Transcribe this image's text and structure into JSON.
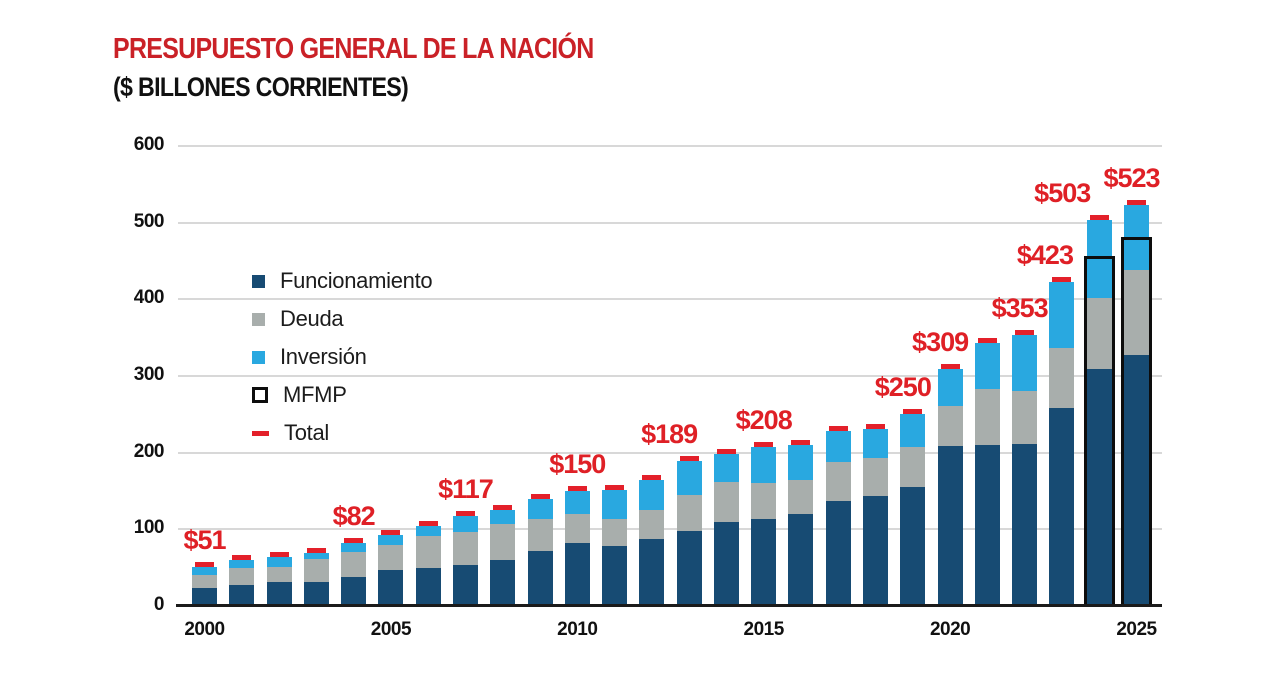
{
  "header": {
    "title": "PRESUPUESTO GENERAL DE LA NACIÓN",
    "subtitle": "($ BILLONES CORRIENTES)"
  },
  "chart_data": {
    "type": "bar",
    "stacked": true,
    "title": "PRESUPUESTO GENERAL DE LA NACIÓN",
    "subtitle": "($ BILLONES CORRIENTES)",
    "units": "$ billones corrientes",
    "ylim": [
      0,
      600
    ],
    "y_ticks": [
      0,
      100,
      200,
      300,
      400,
      500,
      600
    ],
    "x_ticks": [
      2000,
      2005,
      2010,
      2015,
      2020,
      2025
    ],
    "grid": "horizontal",
    "legend_position": "inside-left",
    "series_names": [
      "Funcionamiento",
      "Deuda",
      "Inversión",
      "MFMP",
      "Total"
    ],
    "colors": {
      "funcionamiento": "#174B73",
      "deuda": "#A8AEAC",
      "inversion": "#29A8E0",
      "mfmp_outline": "#0D0D0D",
      "total": "#E3202A",
      "label_red": "#DF2026",
      "title_red": "#CA2127",
      "text": "#111111",
      "gridline": "#D8D8D8",
      "axis_line": "#1B1B1B"
    },
    "legend": [
      {
        "id": "funcionamiento",
        "label": "Funcionamiento",
        "swatch": "square"
      },
      {
        "id": "deuda",
        "label": "Deuda",
        "swatch": "square"
      },
      {
        "id": "inversion",
        "label": "Inversión",
        "swatch": "square"
      },
      {
        "id": "mfmp",
        "label": "MFMP",
        "swatch": "outlined-square"
      },
      {
        "id": "total",
        "label": "Total",
        "swatch": "dash"
      }
    ],
    "bars": [
      {
        "year": 2000,
        "funcionamiento": 23,
        "deuda": 18,
        "inversion": 10,
        "total": 51,
        "label": "$51"
      },
      {
        "year": 2001,
        "funcionamiento": 27,
        "deuda": 22,
        "inversion": 11,
        "total": 60
      },
      {
        "year": 2002,
        "funcionamiento": 31,
        "deuda": 20,
        "inversion": 13,
        "total": 64
      },
      {
        "year": 2003,
        "funcionamiento": 31,
        "deuda": 30,
        "inversion": 8,
        "total": 69
      },
      {
        "year": 2004,
        "funcionamiento": 38,
        "deuda": 33,
        "inversion": 11,
        "total": 82,
        "label": "$82"
      },
      {
        "year": 2005,
        "funcionamiento": 47,
        "deuda": 32,
        "inversion": 13,
        "total": 92
      },
      {
        "year": 2006,
        "funcionamiento": 49,
        "deuda": 42,
        "inversion": 14,
        "total": 105
      },
      {
        "year": 2007,
        "funcionamiento": 53,
        "deuda": 44,
        "inversion": 20,
        "total": 117,
        "label": "$117"
      },
      {
        "year": 2008,
        "funcionamiento": 60,
        "deuda": 47,
        "inversion": 18,
        "total": 125
      },
      {
        "year": 2009,
        "funcionamiento": 72,
        "deuda": 41,
        "inversion": 27,
        "total": 140
      },
      {
        "year": 2010,
        "funcionamiento": 82,
        "deuda": 38,
        "inversion": 30,
        "total": 150,
        "label": "$150"
      },
      {
        "year": 2011,
        "funcionamiento": 78,
        "deuda": 36,
        "inversion": 37,
        "total": 151
      },
      {
        "year": 2012,
        "funcionamiento": 87,
        "deuda": 38,
        "inversion": 40,
        "total": 165
      },
      {
        "year": 2013,
        "funcionamiento": 98,
        "deuda": 47,
        "inversion": 44,
        "total": 189,
        "label": "$189"
      },
      {
        "year": 2014,
        "funcionamiento": 109,
        "deuda": 53,
        "inversion": 36,
        "total": 198
      },
      {
        "year": 2015,
        "funcionamiento": 113,
        "deuda": 47,
        "inversion": 48,
        "total": 208,
        "label": "$208"
      },
      {
        "year": 2016,
        "funcionamiento": 120,
        "deuda": 44,
        "inversion": 46,
        "total": 210
      },
      {
        "year": 2017,
        "funcionamiento": 137,
        "deuda": 51,
        "inversion": 40,
        "total": 228
      },
      {
        "year": 2018,
        "funcionamiento": 144,
        "deuda": 49,
        "inversion": 38,
        "total": 231
      },
      {
        "year": 2019,
        "funcionamiento": 155,
        "deuda": 52,
        "inversion": 43,
        "total": 250,
        "label": "$250"
      },
      {
        "year": 2020,
        "funcionamiento": 209,
        "deuda": 52,
        "inversion": 48,
        "total": 309,
        "label": "$309"
      },
      {
        "year": 2021,
        "funcionamiento": 210,
        "deuda": 73,
        "inversion": 60,
        "total": 343
      },
      {
        "year": 2022,
        "funcionamiento": 211,
        "deuda": 70,
        "inversion": 72,
        "total": 353,
        "label": "$353"
      },
      {
        "year": 2023,
        "funcionamiento": 258,
        "deuda": 79,
        "inversion": 86,
        "total": 423,
        "label": "$423"
      },
      {
        "year": 2024,
        "funcionamiento": 309,
        "deuda": 93,
        "inversion": 101,
        "total": 503,
        "label": "$503",
        "mfmp": 452
      },
      {
        "year": 2025,
        "funcionamiento": 328,
        "deuda": 110,
        "inversion": 85,
        "total": 523,
        "label": "$523",
        "mfmp": 477
      }
    ]
  }
}
